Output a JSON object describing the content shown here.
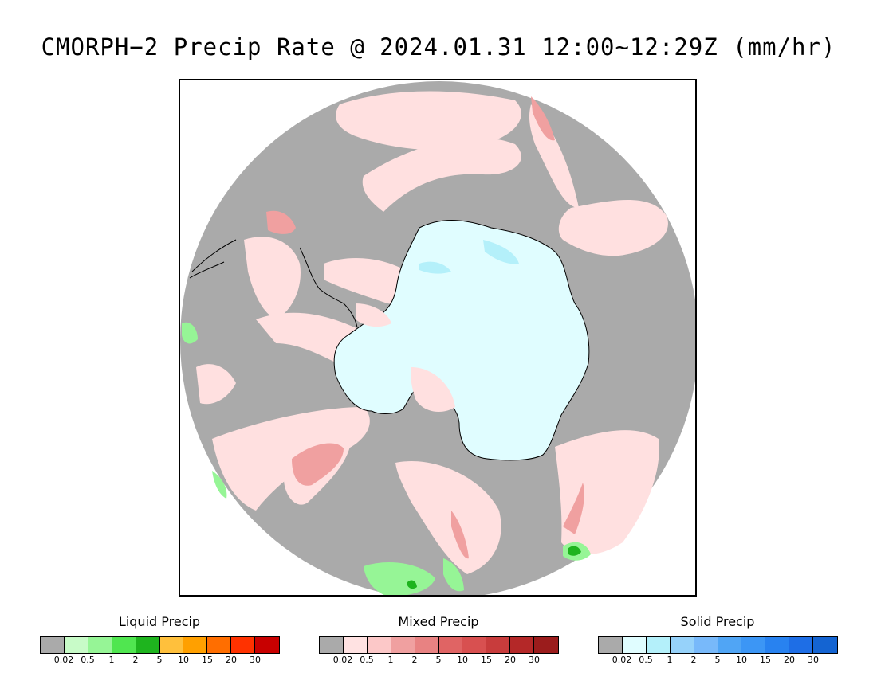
{
  "title": "CMORPH−2 Precip Rate @ 2024.01.31 12:00~12:29Z (mm/hr)",
  "map": {
    "projection": "south-polar-stereographic",
    "no_data_color": "#aaaaaa",
    "land_color": "#e0fdff",
    "coastline_color": "#000000"
  },
  "legends": [
    {
      "title": "Liquid Precip",
      "colors": [
        "#aaaaaa",
        "#c8fbc8",
        "#96f596",
        "#50e650",
        "#1eb41e",
        "#ffc03c",
        "#ffa000",
        "#ff6e00",
        "#ff3200",
        "#c80000"
      ],
      "ticks": [
        "0.02",
        "0.5",
        "1",
        "2",
        "5",
        "10",
        "15",
        "20",
        "30"
      ]
    },
    {
      "title": "Mixed Precip",
      "colors": [
        "#aaaaaa",
        "#ffe2e2",
        "#fcc8c8",
        "#f0a0a0",
        "#e88282",
        "#e06464",
        "#d85050",
        "#c83c3c",
        "#b42828",
        "#9b1c1c"
      ],
      "ticks": [
        "0.02",
        "0.5",
        "1",
        "2",
        "5",
        "10",
        "15",
        "20",
        "30"
      ]
    },
    {
      "title": "Solid Precip",
      "colors": [
        "#aaaaaa",
        "#e0fdff",
        "#b4f0fa",
        "#96d2fa",
        "#78b9fa",
        "#50a5f5",
        "#3c96f5",
        "#2882f0",
        "#1e6ee6",
        "#1464d2"
      ],
      "ticks": [
        "0.02",
        "0.5",
        "1",
        "2",
        "5",
        "10",
        "15",
        "20",
        "30"
      ]
    }
  ]
}
